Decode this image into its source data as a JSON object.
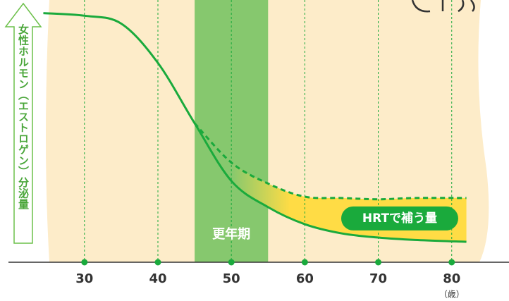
{
  "chart_data": {
    "type": "line",
    "y_label": "女性ホルモン（エストロゲン）分泌量",
    "xlim": [
      18.5,
      87.8
    ],
    "ylim": [
      0,
      100
    ],
    "xticks": [
      30,
      40,
      50,
      60,
      70,
      80
    ],
    "x_unit": "（歳）",
    "band": {
      "range": [
        45,
        55
      ],
      "label": "更年期",
      "color": "#86c86e"
    },
    "fill_label": "HRTで補う量",
    "fill_color": "#ffdc45",
    "grid": true,
    "series": [
      {
        "color": "#1aaa3c",
        "style": "solid",
        "x": [
          24.4,
          30,
          35,
          40,
          45,
          50,
          55,
          60,
          65,
          70,
          75,
          82
        ],
        "values": [
          95,
          94,
          91,
          76,
          53,
          31,
          21,
          14.5,
          11,
          9.4,
          8.5,
          7.8
        ]
      },
      {
        "color": "#1aaa3c",
        "style": "dashed",
        "x": [
          45,
          50,
          55,
          60,
          65,
          70,
          75,
          82
        ],
        "values": [
          53,
          38,
          30,
          25,
          24.5,
          24,
          24.5,
          24.5
        ]
      }
    ]
  }
}
